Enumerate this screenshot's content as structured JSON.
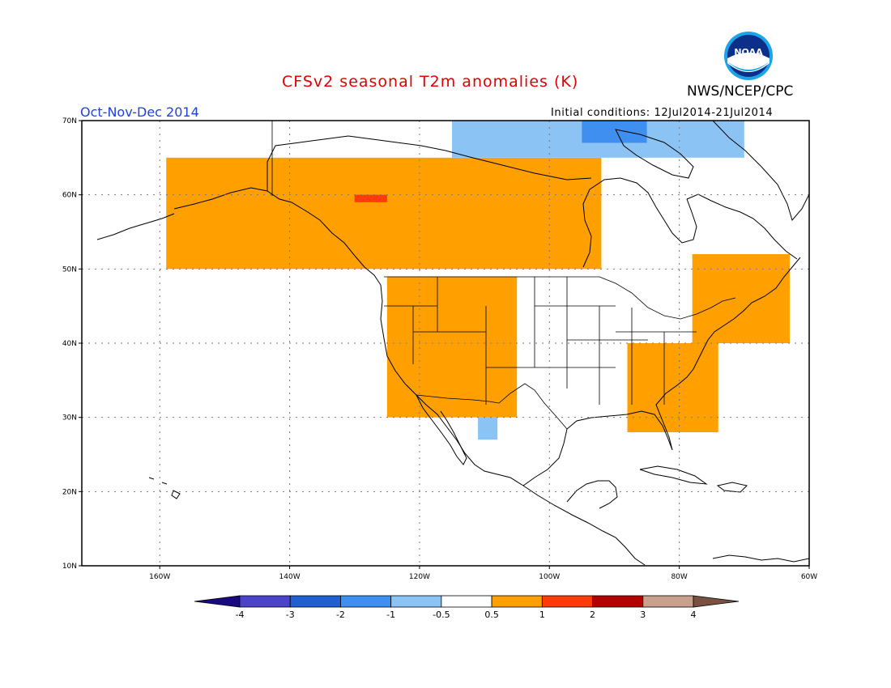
{
  "header": {
    "title": "CFSv2 seasonal T2m anomalies (K)",
    "period": "Oct-Nov-Dec 2014",
    "initial_conditions": "Initial conditions: 12Jul2014-21Jul2014",
    "agency": "NWS/NCEP/CPC",
    "logo_text": "NOAA"
  },
  "map": {
    "projection": "lat-lon",
    "lon_range": [
      -172,
      -60
    ],
    "lat_range": [
      10,
      70
    ],
    "lon_ticks": [
      {
        "value": -160,
        "label": "160W"
      },
      {
        "value": -140,
        "label": "140W"
      },
      {
        "value": -120,
        "label": "120W"
      },
      {
        "value": -100,
        "label": "100W"
      },
      {
        "value": -80,
        "label": "80W"
      },
      {
        "value": -60,
        "label": "60W"
      }
    ],
    "lat_ticks": [
      {
        "value": 10,
        "label": "10N"
      },
      {
        "value": 20,
        "label": "20N"
      },
      {
        "value": 30,
        "label": "30N"
      },
      {
        "value": 40,
        "label": "40N"
      },
      {
        "value": 50,
        "label": "50N"
      },
      {
        "value": 60,
        "label": "60N"
      },
      {
        "value": 70,
        "label": "70N"
      }
    ],
    "gridlines": true
  },
  "colorbar": {
    "labels": [
      "-4",
      "-3",
      "-2",
      "-1",
      "-0.5",
      "0.5",
      "1",
      "2",
      "3",
      "4"
    ],
    "colors": [
      "#1a0a80",
      "#4b44c8",
      "#1f5fcf",
      "#3f8ff0",
      "#8cc3f5",
      "#ffffff",
      "#ff9f00",
      "#ff3b0c",
      "#b00000",
      "#c8a08c",
      "#7a5040"
    ]
  },
  "anomaly_regions": [
    {
      "name": "Alaska-Canada warm",
      "category": "0.5 to 1",
      "lon_range": [
        -159,
        -92
      ],
      "lat_range": [
        50,
        65
      ]
    },
    {
      "name": "Western US warm",
      "category": "0.5 to 1",
      "lon_range": [
        -125,
        -105
      ],
      "lat_range": [
        30,
        49
      ]
    },
    {
      "name": "Northeast warm",
      "category": "0.5 to 1",
      "lon_range": [
        -78,
        -63
      ],
      "lat_range": [
        40,
        52
      ]
    },
    {
      "name": "Southeast coast warm",
      "category": "0.5 to 1",
      "lon_range": [
        -88,
        -74
      ],
      "lat_range": [
        28,
        40
      ]
    },
    {
      "name": "Yukon hot spot",
      "category": "1 to 2",
      "lon_range": [
        -130,
        -125
      ],
      "lat_range": [
        59,
        60
      ]
    },
    {
      "name": "Arctic cool",
      "category": "-1 to -0.5",
      "lon_range": [
        -115,
        -70
      ],
      "lat_range": [
        65,
        70
      ]
    },
    {
      "name": "Hudson Strait cool",
      "category": "-2 to -1",
      "lon_range": [
        -95,
        -85
      ],
      "lat_range": [
        67,
        70
      ]
    },
    {
      "name": "Mexico cool",
      "category": "-1 to -0.5",
      "lon_range": [
        -111,
        -108
      ],
      "lat_range": [
        27,
        30
      ]
    }
  ]
}
